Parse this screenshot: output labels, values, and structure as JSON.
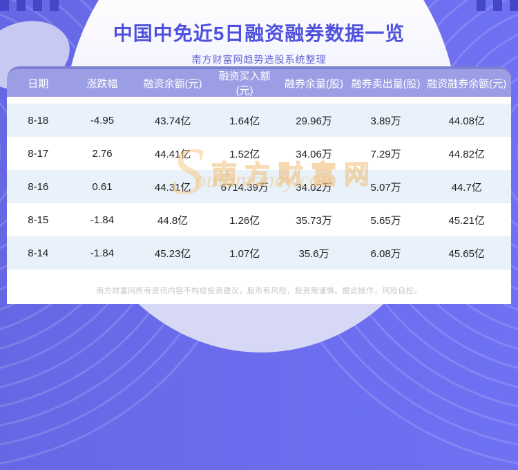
{
  "header": {
    "title": "中国中免近5日融资融券数据一览",
    "subtitle": "南方财富网趋势选股系统整理"
  },
  "chart_data": {
    "type": "table",
    "title": "中国中免近5日融资融券数据一览",
    "columns": [
      "日期",
      "涨跌幅",
      "融资余额(元)",
      "融资买入额(元)",
      "融券余量(股)",
      "融券卖出量(股)",
      "融资融券余额(元)"
    ],
    "rows": [
      [
        "8-18",
        "-4.95",
        "43.74亿",
        "1.64亿",
        "29.96万",
        "3.89万",
        "44.08亿"
      ],
      [
        "8-17",
        "2.76",
        "44.41亿",
        "1.52亿",
        "34.06万",
        "7.29万",
        "44.82亿"
      ],
      [
        "8-16",
        "0.61",
        "44.31亿",
        "6714.39万",
        "34.02万",
        "5.07万",
        "44.7亿"
      ],
      [
        "8-15",
        "-1.84",
        "44.8亿",
        "1.26亿",
        "35.73万",
        "5.65万",
        "45.21亿"
      ],
      [
        "8-14",
        "-1.84",
        "45.23亿",
        "1.07亿",
        "35.6万",
        "6.08万",
        "45.65亿"
      ]
    ]
  },
  "watermark": {
    "initial": "S",
    "cn": "南方财富网",
    "en": "outhmoney.com"
  },
  "footer": {
    "disclaimer": "南方财富网所有资讯内容不构成投资建议，股市有风险，投资需谨慎。据此操作，风险自担。"
  },
  "colors": {
    "background_purple": "#6b6dee",
    "title_text": "#4f51dd",
    "table_header_bg": "#9b9ee4",
    "table_header_back_bg": "#7d7fd0",
    "row_alt_bg": "#e9f2fb",
    "watermark_orange": "#f2c480"
  }
}
